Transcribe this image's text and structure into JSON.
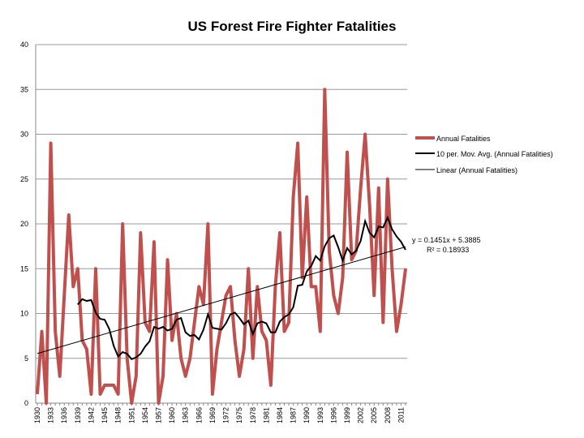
{
  "chart_data": {
    "type": "line",
    "title": "US Forest Fire Fighter Fatalities",
    "xlabel": "",
    "ylabel": "",
    "ylim": [
      0,
      40
    ],
    "yticks": [
      0,
      5,
      10,
      15,
      20,
      25,
      30,
      35,
      40
    ],
    "x_tick_step": 3,
    "grid": true,
    "legend_position": "right",
    "x": [
      1930,
      1931,
      1932,
      1933,
      1934,
      1935,
      1936,
      1937,
      1938,
      1939,
      1940,
      1941,
      1942,
      1943,
      1944,
      1945,
      1946,
      1947,
      1948,
      1949,
      1950,
      1951,
      1952,
      1953,
      1954,
      1955,
      1956,
      1957,
      1958,
      1959,
      1960,
      1961,
      1962,
      1963,
      1964,
      1965,
      1966,
      1967,
      1968,
      1969,
      1970,
      1971,
      1972,
      1973,
      1974,
      1975,
      1976,
      1977,
      1978,
      1979,
      1980,
      1981,
      1982,
      1983,
      1984,
      1985,
      1986,
      1987,
      1988,
      1989,
      1990,
      1991,
      1992,
      1993,
      1994,
      1995,
      1996,
      1997,
      1998,
      1999,
      2000,
      2001,
      2002,
      2003,
      2004,
      2005,
      2006,
      2007,
      2008,
      2009,
      2010,
      2011,
      2012
    ],
    "series": [
      {
        "name": "Annual Fatalities",
        "color": "#c0504d",
        "values": [
          1,
          8,
          0,
          29,
          8,
          3,
          12,
          21,
          13,
          15,
          7,
          6,
          1,
          15,
          1,
          2,
          2,
          2,
          1,
          20,
          5,
          0,
          3,
          19,
          9,
          8,
          18,
          0,
          3,
          16,
          7,
          10,
          5,
          3,
          5,
          9,
          13,
          11,
          20,
          1,
          6,
          9,
          12,
          13,
          7,
          3,
          6,
          15,
          5,
          13,
          8,
          7,
          2,
          13,
          19,
          8,
          9,
          23,
          29,
          14,
          23,
          13,
          13,
          8,
          35,
          17,
          12,
          10,
          14,
          28,
          16,
          17,
          24,
          30,
          22,
          12,
          24,
          9,
          25,
          15,
          8,
          11,
          15
        ]
      },
      {
        "name": "10 per. Mov. Avg. (Annual Fatalities)",
        "color": "#000000",
        "period": 10
      },
      {
        "name": "Linear (Annual Fatalities)",
        "color": "#000000",
        "slope": 0.1451,
        "intercept": 5.3885
      }
    ],
    "annotations": [
      "y = 0.1451x + 5.3885",
      "R² = 0.18933"
    ]
  }
}
